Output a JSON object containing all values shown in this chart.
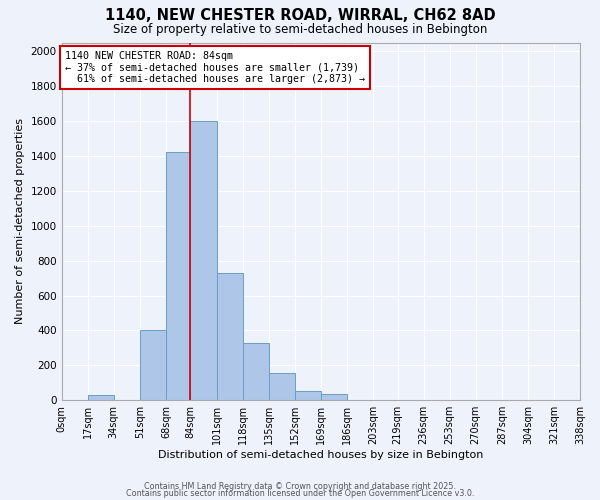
{
  "title_line1": "1140, NEW CHESTER ROAD, WIRRAL, CH62 8AD",
  "title_line2": "Size of property relative to semi-detached houses in Bebington",
  "xlabel": "Distribution of semi-detached houses by size in Bebington",
  "ylabel": "Number of semi-detached properties",
  "bin_labels": [
    "0sqm",
    "17sqm",
    "34sqm",
    "51sqm",
    "68sqm",
    "84sqm",
    "101sqm",
    "118sqm",
    "135sqm",
    "152sqm",
    "169sqm",
    "186sqm",
    "203sqm",
    "219sqm",
    "236sqm",
    "253sqm",
    "270sqm",
    "287sqm",
    "304sqm",
    "321sqm",
    "338sqm"
  ],
  "bin_edges": [
    0,
    17,
    34,
    51,
    68,
    84,
    101,
    118,
    135,
    152,
    169,
    186,
    203,
    219,
    236,
    253,
    270,
    287,
    304,
    321,
    338
  ],
  "bar_heights": [
    0,
    30,
    0,
    400,
    1420,
    1600,
    730,
    330,
    155,
    50,
    35,
    0,
    0,
    0,
    0,
    0,
    0,
    0,
    0,
    0
  ],
  "bar_color": "#aec6e8",
  "bar_edge_color": "#6a9ec4",
  "property_line_x": 84,
  "property_label": "1140 NEW CHESTER ROAD: 84sqm",
  "pct_smaller": 37,
  "pct_larger": 61,
  "count_smaller": 1739,
  "count_larger": 2873,
  "annotation_box_color": "#ffffff",
  "annotation_box_edge_color": "#cc0000",
  "vline_color": "#cc0000",
  "ylim": [
    0,
    2050
  ],
  "yticks": [
    0,
    200,
    400,
    600,
    800,
    1000,
    1200,
    1400,
    1600,
    1800,
    2000
  ],
  "bg_color": "#eef2fb",
  "grid_color": "#ffffff",
  "footer_line1": "Contains HM Land Registry data © Crown copyright and database right 2025.",
  "footer_line2": "Contains public sector information licensed under the Open Government Licence v3.0."
}
